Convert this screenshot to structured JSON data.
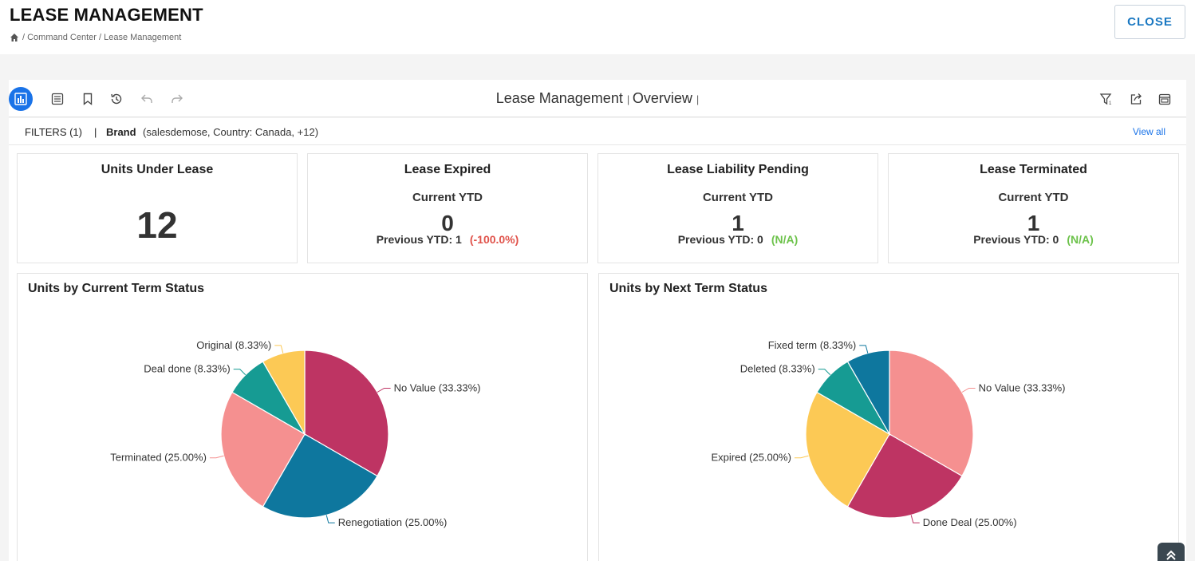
{
  "header": {
    "title": "LEASE MANAGEMENT",
    "breadcrumb": "/ Command Center / Lease Management",
    "close_label": "CLOSE"
  },
  "toolbar": {
    "title": "Lease Management",
    "subtitle": "Overview",
    "icons": [
      "bar-chart-icon",
      "list-icon",
      "bookmark-icon",
      "history-icon",
      "undo-icon",
      "redo-icon",
      "filter-icon",
      "share-icon",
      "schedule-icon"
    ]
  },
  "filters": {
    "label": "FILTERS (1)",
    "separator": "|",
    "brand_label": "Brand",
    "brand_value": "(salesdemose, Country: Canada, +12)",
    "view_all": "View all"
  },
  "kpis": [
    {
      "title": "Units Under Lease",
      "value": "12"
    },
    {
      "title": "Lease Expired",
      "sub": "Current YTD",
      "value": "0",
      "prev_label": "Previous YTD: 1",
      "change": "(-100.0%)",
      "change_color": "#e0524a"
    },
    {
      "title": "Lease Liability Pending",
      "sub": "Current YTD",
      "value": "1",
      "prev_label": "Previous YTD: 0",
      "change": "(N/A)",
      "change_color": "#6cc24a"
    },
    {
      "title": "Lease Terminated",
      "sub": "Current YTD",
      "value": "1",
      "prev_label": "Previous YTD: 0",
      "change": "(N/A)",
      "change_color": "#6cc24a"
    }
  ],
  "chart_data": [
    {
      "type": "pie",
      "title": "Units by Current Term Status",
      "slices": [
        {
          "label": "No Value (33.33%)",
          "value": 33.33,
          "color": "#be3463"
        },
        {
          "label": "Renegotiation (25.00%)",
          "value": 25.0,
          "color": "#0e779e"
        },
        {
          "label": "Terminated (25.00%)",
          "value": 25.0,
          "color": "#f59090"
        },
        {
          "label": "Deal done (8.33%)",
          "value": 8.33,
          "color": "#169b93"
        },
        {
          "label": "Original (8.33%)",
          "value": 8.33,
          "color": "#fcc955"
        }
      ]
    },
    {
      "type": "pie",
      "title": "Units by Next Term Status",
      "slices": [
        {
          "label": "No Value (33.33%)",
          "value": 33.33,
          "color": "#f59090"
        },
        {
          "label": "Done Deal (25.00%)",
          "value": 25.0,
          "color": "#be3463"
        },
        {
          "label": "Expired (25.00%)",
          "value": 25.0,
          "color": "#fcc955"
        },
        {
          "label": "Deleted (8.33%)",
          "value": 8.33,
          "color": "#169b93"
        },
        {
          "label": "Fixed term (8.33%)",
          "value": 8.33,
          "color": "#0e779e"
        }
      ]
    }
  ]
}
